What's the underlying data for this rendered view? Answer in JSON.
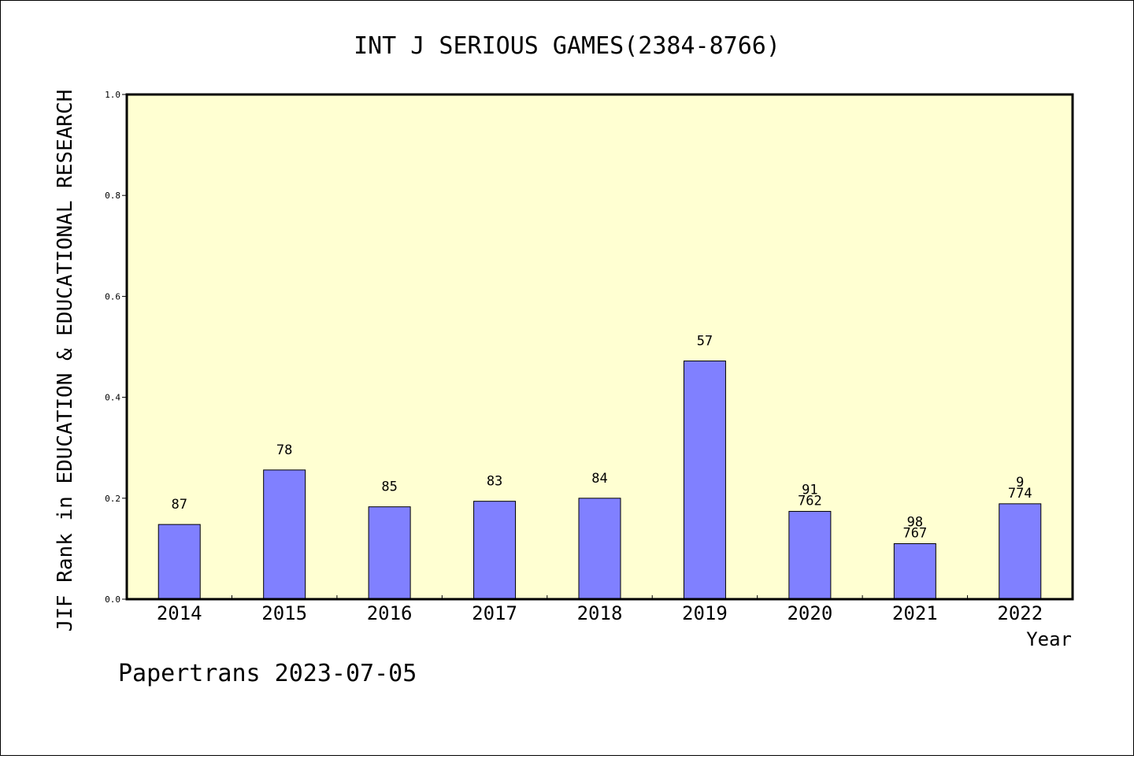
{
  "chart_data": {
    "type": "bar",
    "title": "INT J SERIOUS GAMES(2384-8766)",
    "xlabel": "Year",
    "ylabel": "JIF Rank in EDUCATION & EDUCATIONAL RESEARCH",
    "ylim": [
      0,
      1.0
    ],
    "yticks": [
      "0.0",
      "0.2",
      "0.4",
      "0.6",
      "0.8",
      "1.0"
    ],
    "categories": [
      "2014",
      "2015",
      "2016",
      "2017",
      "2018",
      "2019",
      "2020",
      "2021",
      "2022"
    ],
    "values": [
      0.148,
      0.256,
      0.183,
      0.194,
      0.2,
      0.472,
      0.174,
      0.11,
      0.189
    ],
    "labels": [
      "87",
      "78",
      "85",
      "83",
      "84",
      "57",
      "91\n762",
      "98\n767",
      "9\n774"
    ],
    "background_color": "#ffffd2",
    "bar_color": "#8080ff",
    "grid": false
  },
  "footer": "Papertrans 2023-07-05"
}
